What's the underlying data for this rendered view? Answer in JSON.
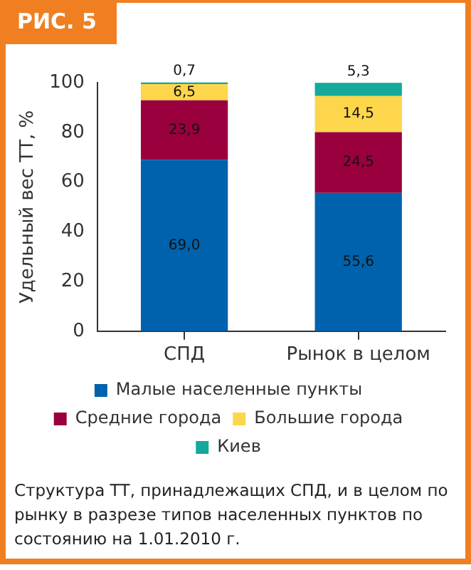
{
  "chart_data": {
    "type": "bar",
    "title": "РИС. 5",
    "ylabel": "Удельный вес ТТ, %",
    "categories": [
      "СПД",
      "Рынок в целом"
    ],
    "series": [
      {
        "name": "Малые населенные пункты",
        "color": "#0062ad",
        "values": [
          69.0,
          55.6
        ],
        "value_labels": [
          "69,0",
          "55,6"
        ]
      },
      {
        "name": "Средние города",
        "color": "#99003d",
        "values": [
          23.9,
          24.5
        ],
        "value_labels": [
          "23,9",
          "24,5"
        ]
      },
      {
        "name": "Большие города",
        "color": "#fdd64b",
        "values": [
          6.5,
          14.5
        ],
        "value_labels": [
          "6,5",
          "14,5"
        ]
      },
      {
        "name": "Киев",
        "color": "#13a99b",
        "values": [
          0.7,
          5.3
        ],
        "value_labels": [
          "0,7",
          "5,3"
        ]
      }
    ],
    "stacked": true,
    "ylim": [
      0,
      100
    ],
    "yticks": [
      0,
      20,
      40,
      60,
      80,
      100
    ],
    "grid": false,
    "legend": "bottom",
    "annotations": [
      "Структура ТТ, принадлежащих СПД, и в целом по рынку в разрезе типов населенных пунктов по состоянию на 1.01.2010 г."
    ]
  }
}
